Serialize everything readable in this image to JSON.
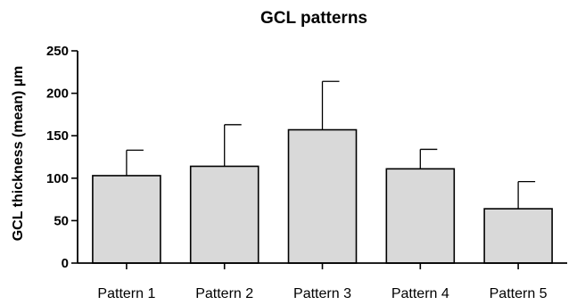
{
  "chart_data": {
    "type": "bar",
    "title": "GCL patterns",
    "xlabel": "",
    "ylabel": "GCL thickness (mean) µm",
    "categories": [
      "Pattern 1",
      "Pattern 2",
      "Pattern 3",
      "Pattern 4",
      "Pattern 5"
    ],
    "values": [
      103,
      114,
      157,
      111,
      64
    ],
    "error_upper": [
      30,
      49,
      57,
      23,
      32
    ],
    "ylim": [
      0,
      250
    ],
    "yticks": [
      "0",
      "50",
      "100",
      "150",
      "200",
      "250"
    ],
    "grid": false,
    "legend": "none",
    "colors": {
      "bar_fill": "#d9d9d9",
      "bar_stroke": "#000000",
      "axis": "#000000"
    }
  }
}
